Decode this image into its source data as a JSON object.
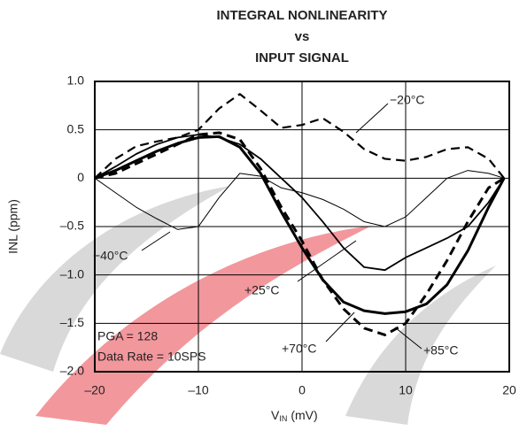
{
  "chart_data": {
    "type": "line",
    "title": [
      "INTEGRAL NONLINEARITY",
      "vs",
      "INPUT SIGNAL"
    ],
    "x_label": [
      "V",
      "IN",
      "(mV)"
    ],
    "y_label": "INL (ppm)",
    "x": [
      -20,
      -18,
      -16,
      -14,
      -12,
      -10,
      -8,
      -6,
      -4,
      -2,
      0,
      2,
      4,
      6,
      8,
      10,
      12,
      14,
      16,
      18,
      19.5
    ],
    "series": [
      {
        "name": "−20°C",
        "color": "#000000",
        "dash": true,
        "width": 2.2,
        "values": [
          0,
          0.2,
          0.33,
          0.38,
          0.42,
          0.5,
          0.72,
          0.87,
          0.7,
          0.52,
          0.55,
          0.62,
          0.48,
          0.3,
          0.2,
          0.18,
          0.22,
          0.3,
          0.32,
          0.2,
          0
        ]
      },
      {
        "name": "−40°C",
        "color": "#000000",
        "dash": false,
        "width": 1,
        "values": [
          0,
          -0.15,
          -0.3,
          -0.42,
          -0.53,
          -0.5,
          -0.2,
          0.05,
          0.02,
          -0.1,
          -0.15,
          -0.22,
          -0.32,
          -0.45,
          -0.5,
          -0.4,
          -0.2,
          0,
          0.08,
          0.05,
          0
        ]
      },
      {
        "name": "+25°C",
        "color": "#000000",
        "dash": false,
        "width": 1.8,
        "values": [
          0,
          0.12,
          0.25,
          0.35,
          0.42,
          0.45,
          0.42,
          0.35,
          0.2,
          0,
          -0.2,
          -0.45,
          -0.72,
          -0.92,
          -0.95,
          -0.82,
          -0.72,
          -0.62,
          -0.5,
          -0.25,
          0
        ]
      },
      {
        "name": "+70°C",
        "color": "#000000",
        "dash": false,
        "width": 3,
        "values": [
          0,
          0.08,
          0.18,
          0.28,
          0.36,
          0.42,
          0.43,
          0.32,
          0.05,
          -0.35,
          -0.72,
          -1.05,
          -1.28,
          -1.37,
          -1.4,
          -1.38,
          -1.3,
          -1.1,
          -0.75,
          -0.3,
          0
        ]
      },
      {
        "name": "+85°C",
        "color": "#000000",
        "dash": true,
        "width": 3,
        "values": [
          0,
          0.05,
          0.15,
          0.25,
          0.35,
          0.45,
          0.47,
          0.4,
          0.1,
          -0.3,
          -0.65,
          -1.05,
          -1.35,
          -1.55,
          -1.62,
          -1.5,
          -1.2,
          -0.85,
          -0.45,
          -0.1,
          0
        ]
      }
    ],
    "annotations": [
      "PGA = 128",
      "Data Rate = 10SPS"
    ],
    "xlim": [
      -20,
      20
    ],
    "xticks": [
      {
        "value": -20,
        "label": "–20"
      },
      {
        "value": -10,
        "label": "–10"
      },
      0,
      10,
      20
    ],
    "ylim": [
      -2,
      1
    ],
    "yticks": [
      {
        "value": -2,
        "label": "–2.0"
      },
      {
        "value": -1.5,
        "label": "–1.5"
      },
      {
        "value": -1,
        "label": "–1.0"
      },
      {
        "value": -0.5,
        "label": "–0.5"
      },
      0,
      {
        "value": 0.5,
        "label": "0.5"
      },
      {
        "value": 1,
        "label": "1.0"
      }
    ],
    "grid": true
  }
}
